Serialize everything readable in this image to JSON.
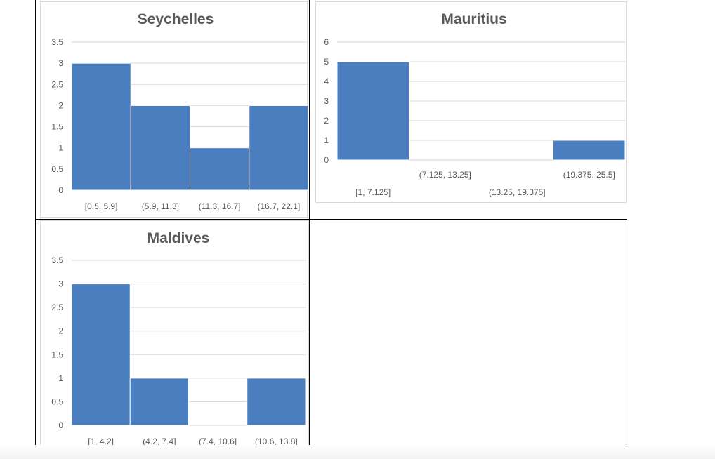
{
  "colors": {
    "bar": "#4a7ebf",
    "bar_edge": "#ffffff",
    "grid": "#d9d9d9",
    "text": "#595959",
    "frame": "#000000"
  },
  "chart_data": [
    {
      "type": "bar",
      "title": "Seychelles",
      "categories": [
        "[0.5, 5.9]",
        "(5.9, 11.3]",
        "(11.3, 16.7]",
        "(16.7, 22.1]"
      ],
      "values": [
        3,
        2,
        1,
        2
      ],
      "yticks": [
        "0",
        "0.5",
        "1",
        "1.5",
        "2",
        "2.5",
        "3",
        "3.5"
      ],
      "ylim": [
        0,
        3.5
      ],
      "grid": true,
      "xlabel": "",
      "ylabel": ""
    },
    {
      "type": "bar",
      "title": "Mauritius",
      "categories": [
        "[1, 7.125]",
        "(7.125, 13.25]",
        "(13.25, 19.375]",
        "(19.375, 25.5]"
      ],
      "values": [
        5,
        0,
        0,
        1
      ],
      "yticks": [
        "0",
        "1",
        "2",
        "3",
        "4",
        "5",
        "6"
      ],
      "ylim": [
        0,
        6
      ],
      "grid": true,
      "xlabel": "",
      "ylabel": ""
    },
    {
      "type": "bar",
      "title": "Maldives",
      "categories": [
        "[1, 4.2]",
        "(4.2, 7.4]",
        "(7.4, 10.6]",
        "(10.6, 13.8]"
      ],
      "values": [
        3,
        1,
        0,
        1
      ],
      "yticks": [
        "0",
        "0.5",
        "1",
        "1.5",
        "2",
        "2.5",
        "3",
        "3.5"
      ],
      "ylim": [
        0,
        3.5
      ],
      "grid": true,
      "xlabel": "",
      "ylabel": ""
    }
  ]
}
